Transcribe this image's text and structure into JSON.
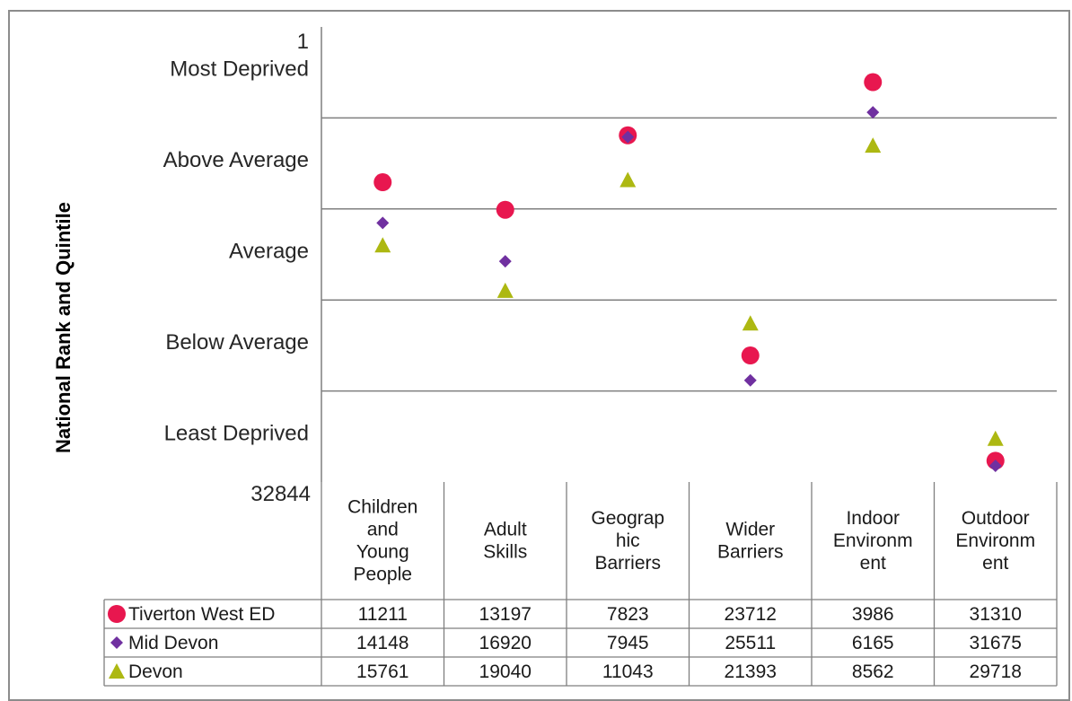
{
  "chart_data": {
    "type": "scatter",
    "title": "",
    "ylabel": "National Rank and Quintile",
    "y_axis": {
      "top_label": "1",
      "bottom_label": "32844",
      "quintile_labels": [
        "Most Deprived",
        "Above Average",
        "Average",
        "Below Average",
        "Least Deprived"
      ],
      "ylim": [
        1,
        32844
      ],
      "inverted": true,
      "gridlines_every": 6569
    },
    "categories": [
      "Children and Young People",
      "Adult Skills",
      "Geographic Barriers",
      "Wider Barriers",
      "Indoor Environment",
      "Outdoor Environment"
    ],
    "category_display": [
      [
        "Children",
        "and",
        "Young",
        "People"
      ],
      [
        "Adult",
        "Skills"
      ],
      [
        "Geograp",
        "hic",
        "Barriers"
      ],
      [
        "Wider",
        "Barriers"
      ],
      [
        "Indoor",
        "Environm",
        "ent"
      ],
      [
        "Outdoor",
        "Environm",
        "ent"
      ]
    ],
    "series": [
      {
        "name": "Tiverton West ED",
        "marker": "circle",
        "color": "#e8174f",
        "values": [
          11211,
          13197,
          7823,
          23712,
          3986,
          31310
        ]
      },
      {
        "name": "Mid Devon",
        "marker": "diamond",
        "color": "#7030a0",
        "values": [
          14148,
          16920,
          7945,
          25511,
          6165,
          31675
        ]
      },
      {
        "name": "Devon",
        "marker": "triangle",
        "color": "#adb812",
        "values": [
          15761,
          19040,
          11043,
          21393,
          8562,
          29718
        ]
      }
    ],
    "data_table": true,
    "legend": "in data table"
  }
}
